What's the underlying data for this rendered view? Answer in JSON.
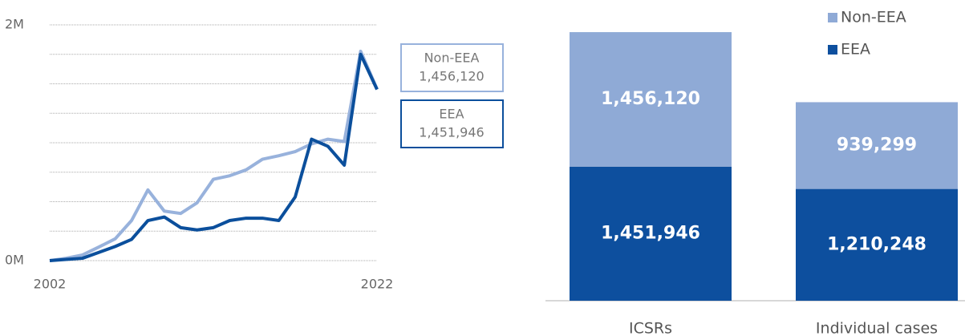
{
  "chart_data": [
    {
      "type": "line",
      "x": [
        2002,
        2003,
        2004,
        2005,
        2006,
        2007,
        2008,
        2009,
        2010,
        2011,
        2012,
        2013,
        2014,
        2015,
        2016,
        2017,
        2018,
        2019,
        2020,
        2021,
        2022
      ],
      "xlim": [
        2002,
        2022
      ],
      "xticks": [
        2002,
        2022
      ],
      "ylim": [
        0,
        2000000
      ],
      "yticks": [
        {
          "value": 0,
          "label": "0M"
        },
        {
          "value": 2000000,
          "label": "2M"
        }
      ],
      "minor_gridlines": [
        250000,
        500000,
        750000,
        1000000,
        1250000,
        1500000,
        1750000
      ],
      "grid": true,
      "series": [
        {
          "name": "Non-EEA",
          "color": "#98b2dc",
          "end_label": "1,456,120",
          "values": [
            0,
            20000,
            48000,
            115000,
            185000,
            340000,
            600000,
            420000,
            400000,
            490000,
            690000,
            720000,
            770000,
            860000,
            890000,
            925000,
            990000,
            1030000,
            1010000,
            1776000,
            1456120
          ]
        },
        {
          "name": "EEA",
          "color": "#0b4f9c",
          "end_label": "1,451,946",
          "values": [
            0,
            10000,
            20000,
            70000,
            120000,
            180000,
            340000,
            370000,
            280000,
            260000,
            280000,
            340000,
            360000,
            360000,
            340000,
            540000,
            1030000,
            970000,
            810000,
            1750000,
            1451946
          ]
        }
      ]
    },
    {
      "type": "stacked_bar",
      "categories": [
        "ICSRs",
        "Individual cases"
      ],
      "ylim": [
        0,
        2900000
      ],
      "legend": "top-right",
      "series": [
        {
          "name": "EEA",
          "color": "#0d4f9e",
          "values": [
            1451946,
            1210248
          ],
          "value_labels": [
            "1,451,946",
            "1,210,248"
          ]
        },
        {
          "name": "Non-EEA",
          "color": "#8faad6",
          "values": [
            1456120,
            939299
          ],
          "value_labels": [
            "1,456,120",
            "939,299"
          ]
        }
      ]
    }
  ]
}
